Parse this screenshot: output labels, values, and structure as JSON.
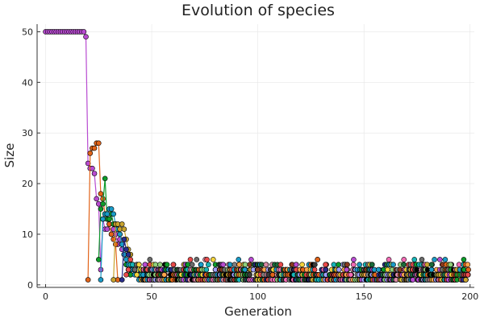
{
  "chart_data": {
    "type": "scatter",
    "title": "Evolution of species",
    "xlabel": "Generation",
    "ylabel": "Size",
    "xlim": [
      -4,
      202
    ],
    "ylim": [
      -0.5,
      51.5
    ],
    "xticks": [
      0,
      50,
      100,
      150,
      200
    ],
    "yticks": [
      0,
      10,
      20,
      30,
      40,
      50
    ],
    "grid": true,
    "legend": "none",
    "series": [
      {
        "color": "#b84bd1",
        "line": true,
        "points": [
          [
            0,
            50
          ],
          [
            1,
            50
          ],
          [
            2,
            50
          ],
          [
            3,
            50
          ],
          [
            4,
            50
          ],
          [
            5,
            50
          ],
          [
            6,
            50
          ],
          [
            7,
            50
          ],
          [
            8,
            50
          ],
          [
            9,
            50
          ],
          [
            10,
            50
          ],
          [
            11,
            50
          ],
          [
            12,
            50
          ],
          [
            13,
            50
          ],
          [
            14,
            50
          ],
          [
            15,
            50
          ],
          [
            16,
            50
          ],
          [
            17,
            50
          ],
          [
            18,
            50
          ],
          [
            19,
            49
          ],
          [
            20,
            24
          ],
          [
            21,
            23
          ],
          [
            22,
            23
          ],
          [
            23,
            22
          ],
          [
            24,
            17
          ],
          [
            25,
            16
          ],
          [
            26,
            3
          ],
          [
            27,
            13
          ],
          [
            28,
            11
          ],
          [
            29,
            11
          ],
          [
            30,
            12
          ],
          [
            31,
            10
          ],
          [
            32,
            11
          ],
          [
            33,
            10
          ],
          [
            34,
            8
          ],
          [
            35,
            9
          ],
          [
            36,
            7
          ],
          [
            37,
            6
          ],
          [
            38,
            4
          ],
          [
            39,
            3
          ],
          [
            40,
            2
          ]
        ]
      },
      {
        "color": "#e2641a",
        "line": true,
        "points": [
          [
            20,
            1
          ],
          [
            21,
            26
          ],
          [
            22,
            27
          ],
          [
            23,
            27
          ],
          [
            24,
            28
          ],
          [
            25,
            28
          ],
          [
            26,
            18
          ],
          [
            27,
            17
          ],
          [
            28,
            14
          ],
          [
            29,
            13
          ],
          [
            30,
            12
          ],
          [
            31,
            10
          ],
          [
            32,
            9
          ],
          [
            33,
            8
          ],
          [
            34,
            1
          ]
        ]
      },
      {
        "color": "#0d9c2a",
        "line": true,
        "points": [
          [
            25,
            5
          ],
          [
            26,
            15
          ],
          [
            27,
            16
          ],
          [
            28,
            21
          ],
          [
            29,
            13
          ],
          [
            30,
            13
          ],
          [
            31,
            14
          ],
          [
            32,
            12
          ],
          [
            33,
            12
          ],
          [
            34,
            11
          ],
          [
            35,
            10
          ],
          [
            36,
            8
          ],
          [
            37,
            6
          ],
          [
            38,
            4
          ],
          [
            39,
            3
          ],
          [
            40,
            2
          ]
        ]
      },
      {
        "color": "#1a9bc7",
        "line": true,
        "points": [
          [
            26,
            1
          ],
          [
            27,
            13
          ],
          [
            28,
            14
          ],
          [
            29,
            14
          ],
          [
            30,
            15
          ],
          [
            31,
            15
          ],
          [
            32,
            14
          ],
          [
            33,
            12
          ],
          [
            34,
            11
          ],
          [
            35,
            10
          ],
          [
            36,
            8
          ],
          [
            37,
            6
          ],
          [
            38,
            5
          ],
          [
            39,
            4
          ],
          [
            40,
            3
          ],
          [
            41,
            3
          ],
          [
            42,
            2
          ],
          [
            43,
            2
          ],
          [
            44,
            1
          ]
        ]
      },
      {
        "color": "#c9a42f",
        "line": true,
        "points": [
          [
            32,
            1
          ],
          [
            33,
            12
          ],
          [
            34,
            12
          ],
          [
            35,
            11
          ],
          [
            36,
            12
          ],
          [
            37,
            11
          ],
          [
            38,
            9
          ],
          [
            39,
            7
          ],
          [
            40,
            6
          ],
          [
            41,
            4
          ],
          [
            42,
            3
          ],
          [
            43,
            2
          ],
          [
            44,
            2
          ],
          [
            45,
            1
          ]
        ]
      },
      {
        "color": "#2a2d8a",
        "line": true,
        "points": [
          [
            36,
            1
          ],
          [
            37,
            9
          ],
          [
            38,
            7
          ],
          [
            39,
            6
          ],
          [
            40,
            4
          ],
          [
            41,
            4
          ],
          [
            42,
            3
          ],
          [
            43,
            3
          ],
          [
            44,
            2
          ],
          [
            45,
            2
          ],
          [
            46,
            1
          ]
        ]
      },
      {
        "color": "#e94a4a",
        "line": true,
        "points": [
          [
            38,
            2
          ],
          [
            39,
            3
          ],
          [
            40,
            5
          ],
          [
            41,
            4
          ],
          [
            42,
            3
          ],
          [
            43,
            3
          ],
          [
            44,
            2
          ],
          [
            45,
            2
          ],
          [
            46,
            1
          ]
        ]
      },
      {
        "color": "#16b5b8",
        "line": true,
        "points": [
          [
            40,
            4
          ],
          [
            41,
            4
          ],
          [
            42,
            3
          ],
          [
            43,
            4
          ],
          [
            44,
            3
          ],
          [
            45,
            2
          ],
          [
            46,
            2
          ],
          [
            47,
            1
          ]
        ]
      },
      {
        "color": "#6b6b6b",
        "line": true,
        "points": [
          [
            42,
            3
          ],
          [
            43,
            4
          ],
          [
            44,
            4
          ],
          [
            45,
            3
          ],
          [
            46,
            2
          ],
          [
            47,
            2
          ],
          [
            48,
            1
          ]
        ]
      },
      {
        "color": "#f2d33c",
        "line": true,
        "points": [
          [
            43,
            2
          ],
          [
            44,
            4
          ],
          [
            45,
            3
          ],
          [
            46,
            3
          ],
          [
            47,
            2
          ],
          [
            48,
            2
          ],
          [
            49,
            1
          ]
        ]
      }
    ]
  }
}
